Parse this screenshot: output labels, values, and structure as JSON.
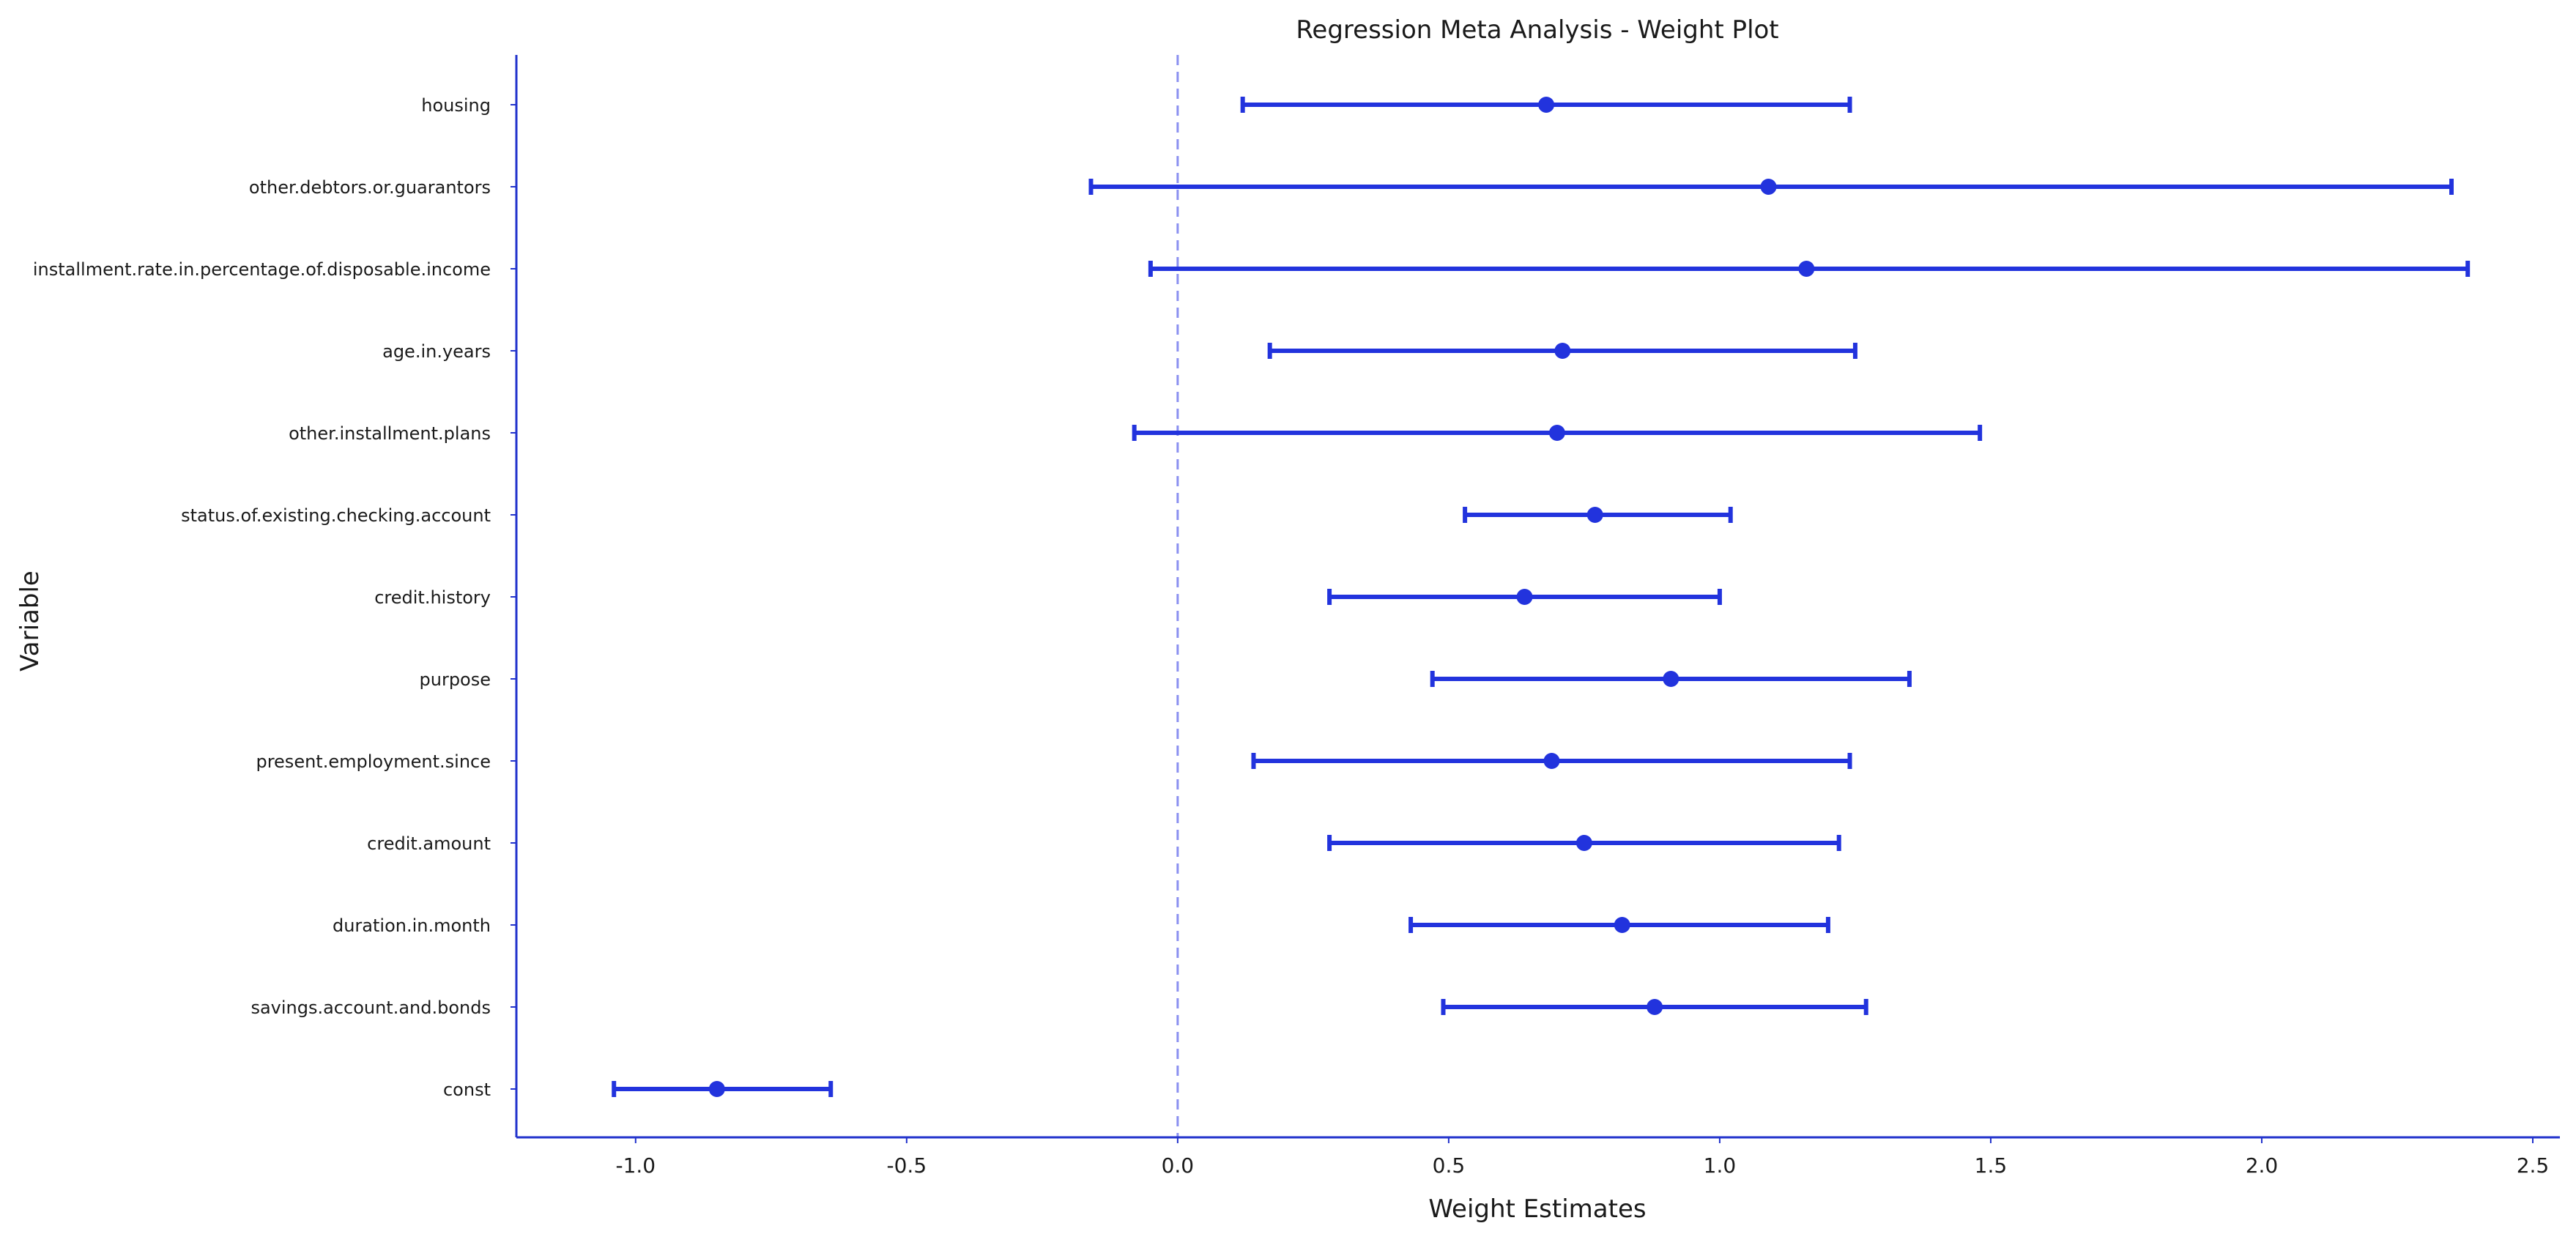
{
  "chart_data": {
    "type": "errorbar",
    "title": "Regression Meta Analysis - Weight Plot",
    "xlabel": "Weight Estimates",
    "ylabel": "Variable",
    "xlim": [
      -1.22,
      2.55
    ],
    "xticks": [
      -1.0,
      -0.5,
      0.0,
      0.5,
      1.0,
      1.5,
      2.0,
      2.5
    ],
    "xtick_labels": [
      "-1.0",
      "-0.5",
      "0.0",
      "0.5",
      "1.0",
      "1.5",
      "2.0",
      "2.5"
    ],
    "reference_line": {
      "x": 0.0,
      "style": "dashed"
    },
    "grid": false,
    "categories": [
      "housing",
      "other.debtors.or.guarantors",
      "installment.rate.in.percentage.of.disposable.income",
      "age.in.years",
      "other.installment.plans",
      "status.of.existing.checking.account",
      "credit.history",
      "purpose",
      "present.employment.since",
      "credit.amount",
      "duration.in.month",
      "savings.account.and.bonds",
      "const"
    ],
    "estimates": [
      0.68,
      1.09,
      1.16,
      0.71,
      0.7,
      0.77,
      0.64,
      0.91,
      0.69,
      0.75,
      0.82,
      0.88,
      -0.85
    ],
    "lower": [
      0.12,
      -0.16,
      -0.05,
      0.17,
      -0.08,
      0.53,
      0.28,
      0.47,
      0.14,
      0.28,
      0.43,
      0.49,
      -1.04
    ],
    "upper": [
      1.24,
      2.35,
      2.38,
      1.25,
      1.48,
      1.02,
      1.0,
      1.35,
      1.24,
      1.22,
      1.2,
      1.27,
      -0.64
    ],
    "colors": {
      "series": "#2233dd",
      "axis": "#2233cc",
      "reference": "#8a8ff0"
    }
  }
}
